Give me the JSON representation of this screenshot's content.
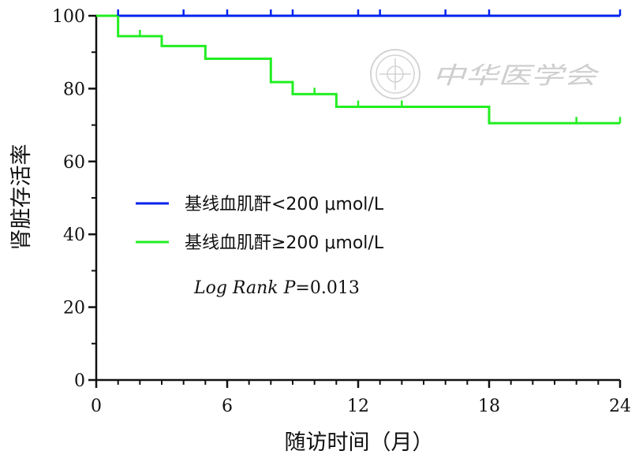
{
  "chart_data": {
    "type": "line",
    "step": true,
    "xlabel": "随访时间（月）",
    "ylabel": "肾脏存活率",
    "xlim": [
      0,
      24
    ],
    "ylim": [
      0,
      100
    ],
    "x_ticks": [
      0,
      6,
      12,
      18,
      24
    ],
    "y_ticks": [
      0,
      20,
      40,
      60,
      80,
      100
    ],
    "grid": false,
    "legend_position": "center-left",
    "annotation": {
      "label": "Log Rank P",
      "value": "=0.013"
    },
    "series": [
      {
        "name": "基线血肌酐<200 μmol/L",
        "color": "#0022ee",
        "steps": [
          [
            0,
            100
          ],
          [
            24,
            100
          ]
        ],
        "censored": [
          [
            1,
            100
          ],
          [
            4,
            100
          ],
          [
            6,
            100
          ],
          [
            8,
            100
          ],
          [
            9,
            100
          ],
          [
            12,
            100
          ],
          [
            13,
            100
          ],
          [
            16,
            100
          ],
          [
            18,
            100
          ],
          [
            24,
            100
          ]
        ]
      },
      {
        "name": "基线血肌酐≥200 μmol/L",
        "color": "#22ee22",
        "steps": [
          [
            0,
            100
          ],
          [
            1,
            94.4
          ],
          [
            3,
            91.7
          ],
          [
            5,
            88.2
          ],
          [
            8,
            81.8
          ],
          [
            9,
            78.5
          ],
          [
            11,
            75
          ],
          [
            18,
            70.5
          ],
          [
            24,
            70.5
          ]
        ],
        "censored": [
          [
            2,
            94.4
          ],
          [
            10,
            78.5
          ],
          [
            12,
            75
          ],
          [
            14,
            75
          ],
          [
            22,
            70.5
          ],
          [
            24,
            70.5
          ]
        ]
      }
    ]
  },
  "watermark": {
    "text": "中华医学会",
    "seal_icon": "seal-emblem-icon"
  }
}
